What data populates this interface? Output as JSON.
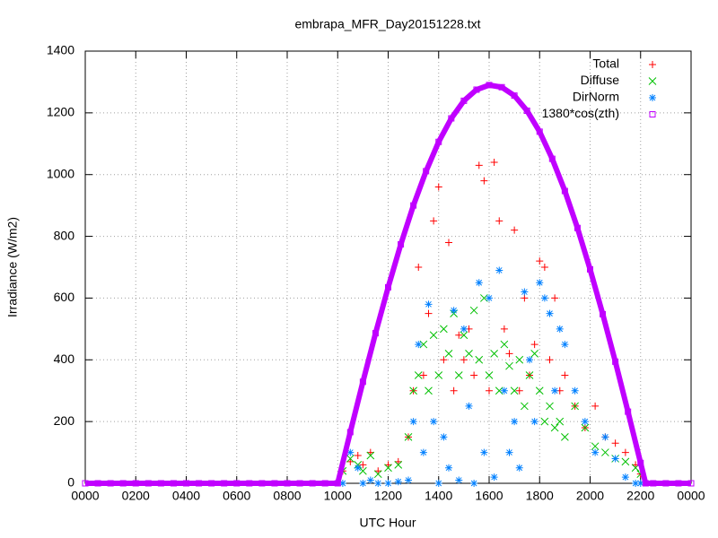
{
  "chart_data": {
    "type": "scatter",
    "title": "embrapa_MFR_Day20151228.txt",
    "xlabel": "UTC Hour",
    "ylabel": "Irradiance (W/m2)",
    "xlim": [
      0,
      24
    ],
    "xticks": [
      {
        "value": 0,
        "label": "0000"
      },
      {
        "value": 2,
        "label": "0200"
      },
      {
        "value": 4,
        "label": "0400"
      },
      {
        "value": 6,
        "label": "0600"
      },
      {
        "value": 8,
        "label": "0800"
      },
      {
        "value": 10,
        "label": "1000"
      },
      {
        "value": 12,
        "label": "1200"
      },
      {
        "value": 14,
        "label": "1400"
      },
      {
        "value": 16,
        "label": "1600"
      },
      {
        "value": 18,
        "label": "1800"
      },
      {
        "value": 20,
        "label": "2000"
      },
      {
        "value": 22,
        "label": "2200"
      },
      {
        "value": 24,
        "label": "0000"
      }
    ],
    "ylim": [
      0,
      1400
    ],
    "yticks": [
      0,
      200,
      400,
      600,
      800,
      1000,
      1200,
      1400
    ],
    "grid": true,
    "legend": "top-right",
    "series": [
      {
        "name": "Total",
        "color": "#ff0000",
        "marker": "plus",
        "x": [
          10.2,
          10.5,
          10.8,
          11,
          11.3,
          11.6,
          12,
          12.4,
          12.8,
          13,
          13.2,
          13.4,
          13.6,
          13.8,
          14,
          14.2,
          14.4,
          14.6,
          14.8,
          15,
          15.2,
          15.4,
          15.6,
          15.8,
          16,
          16.2,
          16.4,
          16.6,
          16.8,
          17,
          17.2,
          17.4,
          17.6,
          17.8,
          18,
          18.2,
          18.4,
          18.6,
          18.8,
          19,
          19.4,
          19.8,
          20.2,
          20.6,
          21,
          21.4,
          21.8,
          22
        ],
        "values": [
          40,
          70,
          90,
          60,
          100,
          40,
          60,
          70,
          150,
          300,
          700,
          350,
          550,
          850,
          960,
          400,
          780,
          300,
          480,
          400,
          500,
          350,
          1030,
          980,
          300,
          1040,
          850,
          500,
          420,
          820,
          300,
          600,
          350,
          450,
          720,
          700,
          400,
          600,
          300,
          350,
          250,
          180,
          250,
          150,
          130,
          100,
          60,
          30
        ]
      },
      {
        "name": "Diffuse",
        "color": "#00c000",
        "marker": "cross",
        "x": [
          10.2,
          10.5,
          10.8,
          11,
          11.3,
          11.6,
          12,
          12.4,
          12.8,
          13,
          13.2,
          13.4,
          13.6,
          13.8,
          14,
          14.2,
          14.4,
          14.6,
          14.8,
          15,
          15.2,
          15.4,
          15.6,
          15.8,
          16,
          16.2,
          16.4,
          16.6,
          16.8,
          17,
          17.2,
          17.4,
          17.6,
          17.8,
          18,
          18.2,
          18.4,
          18.6,
          18.8,
          19,
          19.4,
          19.8,
          20.2,
          20.6,
          21,
          21.4,
          21.8,
          22
        ],
        "values": [
          40,
          80,
          60,
          40,
          90,
          30,
          50,
          60,
          150,
          300,
          350,
          450,
          300,
          480,
          350,
          500,
          420,
          550,
          350,
          480,
          420,
          560,
          400,
          600,
          350,
          420,
          300,
          450,
          380,
          300,
          400,
          250,
          350,
          420,
          300,
          200,
          250,
          180,
          200,
          150,
          250,
          180,
          120,
          100,
          80,
          70,
          50,
          30
        ]
      },
      {
        "name": "DirNorm",
        "color": "#0080ff",
        "marker": "star",
        "x": [
          10.2,
          10.5,
          10.8,
          11,
          11.3,
          11.6,
          12,
          12.4,
          12.8,
          13,
          13.2,
          13.4,
          13.6,
          13.8,
          14,
          14.2,
          14.4,
          14.6,
          14.8,
          15,
          15.2,
          15.4,
          15.6,
          15.8,
          16,
          16.2,
          16.4,
          16.6,
          16.8,
          17,
          17.2,
          17.4,
          17.6,
          17.8,
          18,
          18.2,
          18.4,
          18.6,
          18.8,
          19,
          19.4,
          19.8,
          20.2,
          20.6,
          21,
          21.4,
          21.8,
          22
        ],
        "values": [
          0,
          100,
          50,
          0,
          10,
          0,
          0,
          5,
          10,
          200,
          450,
          100,
          580,
          200,
          0,
          150,
          50,
          560,
          10,
          500,
          250,
          0,
          650,
          100,
          600,
          20,
          690,
          300,
          100,
          200,
          50,
          620,
          400,
          200,
          650,
          600,
          550,
          300,
          500,
          450,
          300,
          200,
          100,
          150,
          80,
          20,
          0,
          0
        ]
      },
      {
        "name": "1380*cos(zth)",
        "color": "#c000ff",
        "marker": "square",
        "x": [
          0,
          0.5,
          1,
          1.5,
          2,
          2.5,
          3,
          3.5,
          4,
          4.5,
          5,
          5.5,
          6,
          6.5,
          7,
          7.5,
          8,
          8.5,
          9,
          9.5,
          10,
          10.5,
          11,
          11.5,
          12,
          12.5,
          13,
          13.5,
          14,
          14.5,
          15,
          15.5,
          16,
          16.5,
          17,
          17.5,
          18,
          18.5,
          19,
          19.5,
          20,
          20.5,
          21,
          21.5,
          22,
          22.2,
          22.5,
          23,
          23.5,
          24
        ],
        "values": [
          0,
          0,
          0,
          0,
          0,
          0,
          0,
          0,
          0,
          0,
          0,
          0,
          0,
          0,
          0,
          0,
          0,
          0,
          0,
          0,
          0,
          166,
          329,
          486,
          635,
          774,
          900,
          1011,
          1106,
          1182,
          1239,
          1275,
          1290,
          1283,
          1256,
          1207,
          1139,
          1051,
          947,
          827,
          693,
          548,
          394,
          232,
          66,
          0,
          0,
          0,
          0,
          0
        ]
      }
    ]
  }
}
